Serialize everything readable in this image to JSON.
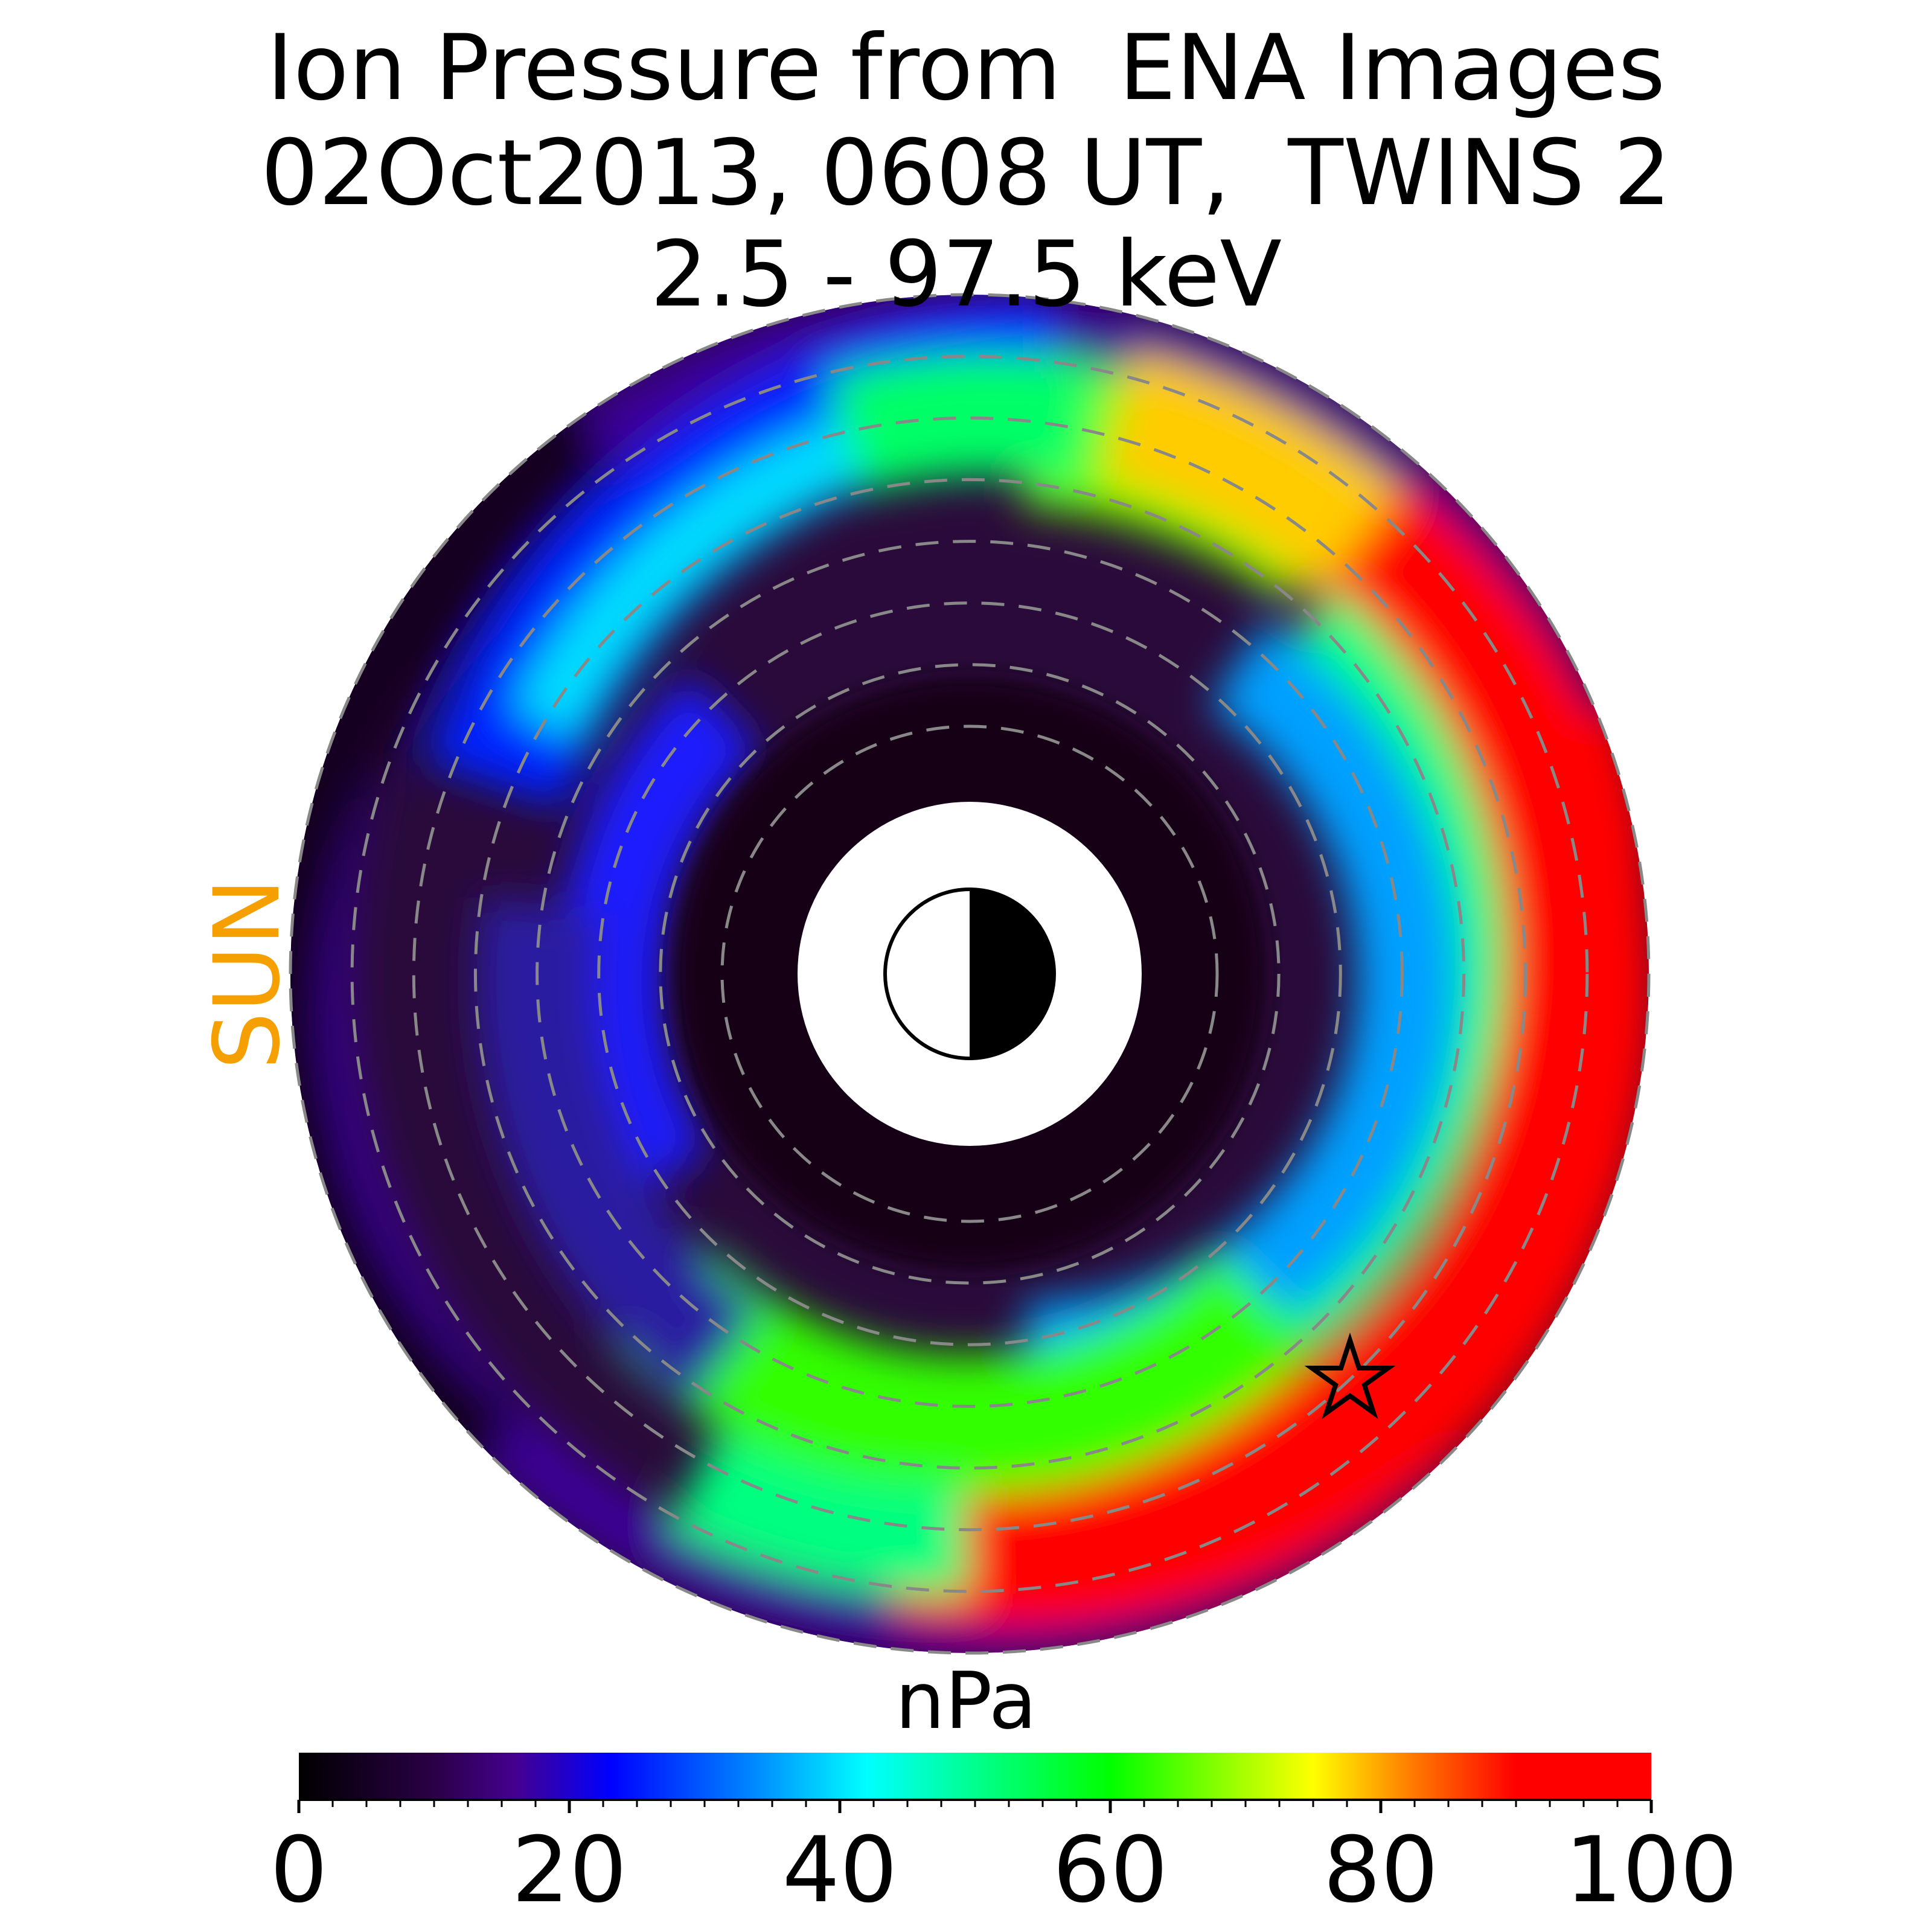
{
  "title": {
    "line1": "Ion Pressure from  ENA Images",
    "line2": "02Oct2013, 0608 UT,  TWINS 2",
    "line3": "2.5 - 97.5 keV"
  },
  "sun_label": "SUN",
  "colors": {
    "sun_label": "#f5a000",
    "grid_circles": "#888888",
    "colormap": [
      "#000000",
      "#3c0064",
      "#0000ff",
      "#00ffff",
      "#00ff00",
      "#ffff00",
      "#ff0000"
    ]
  },
  "chart_data": {
    "type": "heatmap",
    "title": "Ion Pressure from  ENA Images",
    "subtitle": "02Oct2013, 0608 UT,  TWINS 2 / 2.5 - 97.5 keV",
    "projection": "polar equatorial map, Sun to the left",
    "earth_symbol": "half-lit Earth at center, dayside toward Sun",
    "marker": {
      "symbol": "star"
    },
    "dashed_circles": 8,
    "colorbar": {
      "label": "nPa",
      "range": [
        0,
        100
      ],
      "ticks": [
        0,
        20,
        40,
        60,
        80,
        100
      ],
      "tick_labels": [
        "0",
        "20",
        "40",
        "60",
        "80",
        "100"
      ]
    },
    "features": [
      {
        "region": "evening / dusk-midnight outer ring",
        "value_nPa": 100
      },
      {
        "region": "post-midnight outer ring",
        "value_nPa": 65
      },
      {
        "region": "inner ring near Earth",
        "value_nPa": 5
      },
      {
        "region": "dayside outer ring",
        "value_nPa": 10
      }
    ]
  }
}
